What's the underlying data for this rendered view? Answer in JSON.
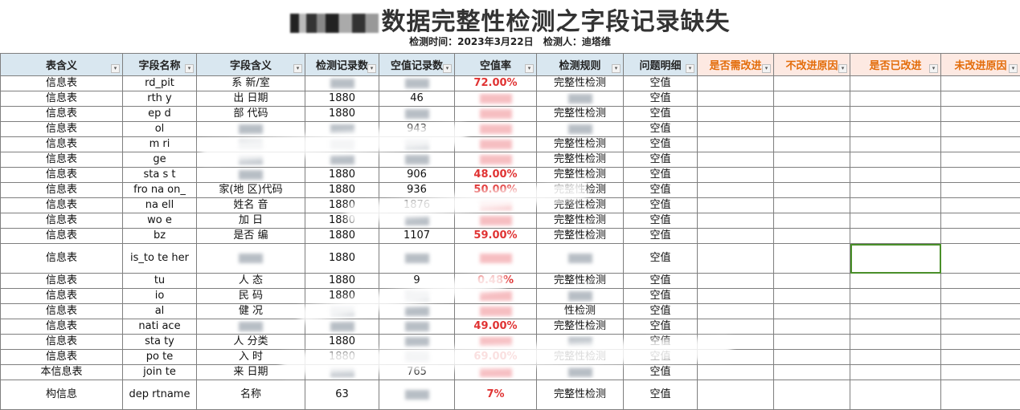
{
  "title": {
    "suffix": "数据完整性检测之字段记录缺失"
  },
  "subtitle": {
    "time": "检测时间：2023年3月22日",
    "inspector": "检测人：迪塔维"
  },
  "columns": [
    "表含义",
    "字段名称",
    "字段含义",
    "检测记录数",
    "空值记录数",
    "空值率",
    "检测规则",
    "问题明细",
    "是否需改进",
    "不改进原因",
    "是否已改进",
    "未改进原因"
  ],
  "orange_columns": [
    8,
    9,
    10,
    11
  ],
  "filter_icon": "dropdown-filter-icon",
  "colors": {
    "header_bg": "#d9e7f0",
    "orange_header_bg": "#fde9e2",
    "orange_text": "#e36c0a",
    "rate_text": "#e03333",
    "selection": "#4a8f2a"
  },
  "rows": [
    [
      "信息表",
      "rd_pit",
      "系 新/室",
      "",
      "",
      "72.00%",
      "完整性检测",
      "空值"
    ],
    [
      "信息表",
      "rth y",
      "出 日期",
      "1880",
      "46",
      "",
      "",
      "空值"
    ],
    [
      "信息表",
      "ep d",
      "部 代码",
      "1880",
      "",
      "",
      "完整性检测",
      "空值"
    ],
    [
      "信息表",
      "ol",
      "",
      "",
      "943",
      "",
      "",
      "空值"
    ],
    [
      "信息表",
      "m ri",
      "",
      "",
      "",
      "",
      "完整性检测",
      "空值"
    ],
    [
      "信息表",
      "ge",
      "",
      "",
      "",
      "",
      "完整性检测",
      "空值"
    ],
    [
      "信息表",
      "sta s t",
      "",
      "1880",
      "906",
      "48.00%",
      "完整性检测",
      "空值"
    ],
    [
      "信息表",
      "fro na on_",
      "家(地 区)代码",
      "1880",
      "936",
      "50.00%",
      "完整性检测",
      "空值"
    ],
    [
      "信息表",
      "na ell",
      "姓名 音",
      "1880",
      "1876",
      "",
      "完整性检测",
      "空值"
    ],
    [
      "信息表",
      "wo e",
      "加 日",
      "1880",
      "",
      "",
      "完整性检测",
      "空值"
    ],
    [
      "信息表",
      "bz",
      "是否 编",
      "1880",
      "1107",
      "59.00%",
      "完整性检测",
      "空值"
    ],
    [
      "信息表",
      "is_to te her",
      "",
      "1880",
      "",
      "",
      "",
      "空值"
    ],
    [
      "信息表",
      "tu",
      "人 态",
      "1880",
      "9",
      "0.48%",
      "完整性检测",
      "空值"
    ],
    [
      "信息表",
      "io",
      "民 码",
      "1880",
      "",
      "",
      "",
      "空值"
    ],
    [
      "信息表",
      "al",
      "健 况",
      "",
      "",
      "",
      "性检测",
      "空值"
    ],
    [
      "信息表",
      "nati ace",
      "",
      "",
      "",
      "49.00%",
      "完整性检测",
      "空值"
    ],
    [
      "信息表",
      "sta ty",
      "人 分类",
      "1880",
      "",
      "",
      "",
      "空值"
    ],
    [
      "信息表",
      "po te",
      "入 时",
      "1880",
      "",
      "69.00%",
      "完整性检测",
      "空值"
    ],
    [
      "本信息表",
      "join te",
      "来 日期",
      "",
      "765",
      "",
      "",
      "空值"
    ],
    [
      "构信息",
      "dep rtname",
      "名称",
      "63",
      "",
      "7%",
      "完整性检测",
      "空值"
    ]
  ]
}
